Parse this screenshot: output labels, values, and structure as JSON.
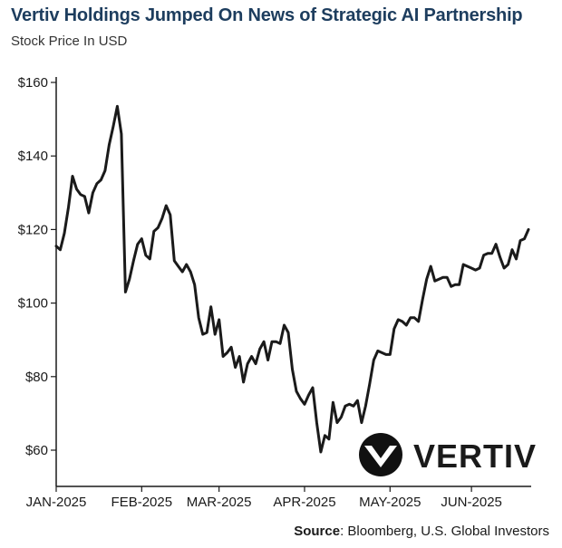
{
  "header": {
    "title": "Vertiv Holdings Jumped On News of Strategic AI Partnership",
    "subtitle": "Stock Price In USD"
  },
  "footer": {
    "source_label": "Source",
    "source_text": ": Bloomberg, U.S. Global Investors"
  },
  "logo": {
    "text": "VERTIV",
    "trademark": "™",
    "icon": "vertiv-chevron-icon"
  },
  "chart_data": {
    "type": "line",
    "title": "Vertiv Holdings Jumped On News of Strategic AI Partnership",
    "subtitle": "Stock Price In USD",
    "xlabel": "",
    "ylabel": "",
    "ylim": [
      50,
      160
    ],
    "yticks": [
      60,
      80,
      100,
      120,
      140,
      160
    ],
    "ytick_labels": [
      "$60",
      "$80",
      "$100",
      "$120",
      "$140",
      "$160"
    ],
    "x_ticks": [
      {
        "label": "JAN-2025",
        "index": 0
      },
      {
        "label": "FEB-2025",
        "index": 21
      },
      {
        "label": "MAR-2025",
        "index": 40
      },
      {
        "label": "APR-2025",
        "index": 61
      },
      {
        "label": "MAY-2025",
        "index": 82
      },
      {
        "label": "JUN-2025",
        "index": 102
      }
    ],
    "grid": false,
    "line_color": "#1a1a1a",
    "series": [
      {
        "values": [
          115.5,
          114.5,
          119,
          126,
          134.5,
          131,
          129.5,
          129,
          124.5,
          130,
          132.5,
          133.5,
          136,
          143,
          148,
          153.5,
          146,
          103,
          106.5,
          111.5,
          116,
          117.5,
          113,
          112,
          119.5,
          120.5,
          123,
          126.5,
          124,
          111.5,
          110,
          108.5,
          110.5,
          108.5,
          105,
          96,
          91.5,
          92,
          99,
          91.5,
          95.5,
          85.5,
          86.5,
          88,
          82.5,
          85.5,
          78.5,
          83.5,
          85.5,
          83.5,
          87.5,
          89.5,
          84.5,
          89.5,
          89.5,
          89,
          94,
          92,
          82,
          76,
          74,
          72.5,
          75,
          77,
          67.5,
          59.5,
          64,
          63,
          73,
          67.5,
          69,
          72,
          72.5,
          72,
          73.5,
          67.5,
          72,
          78,
          84.5,
          87,
          86.5,
          86,
          86,
          93,
          95.5,
          95,
          94,
          96,
          96,
          95,
          101,
          106.5,
          110,
          106,
          106.5,
          107,
          107,
          104.5,
          105,
          105,
          110.5,
          110,
          109.5,
          109,
          109.5,
          113,
          113.5,
          113.5,
          116,
          112.5,
          109.5,
          110.5,
          114.5,
          112,
          117,
          117.5,
          120
        ]
      }
    ]
  }
}
